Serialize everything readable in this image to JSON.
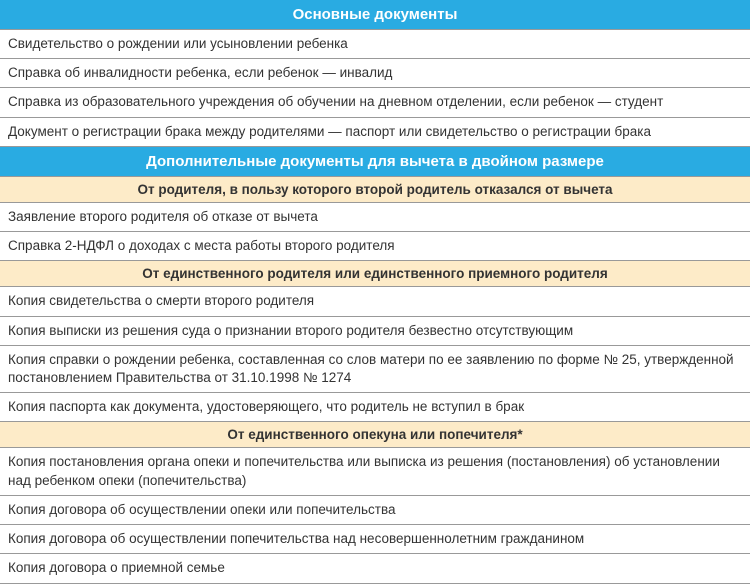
{
  "colors": {
    "header_primary_bg": "#29abe2",
    "header_primary_fg": "#ffffff",
    "header_secondary_bg": "#fdebc8",
    "header_secondary_fg": "#333333",
    "row_bg": "#ffffff",
    "row_fg": "#333333",
    "border": "#999999"
  },
  "typography": {
    "header_fontsize": 15,
    "subheader_fontsize": 13.5,
    "row_fontsize": 13.5,
    "font_family": "Arial"
  },
  "sections": [
    {
      "type": "header-primary",
      "text": "Основные документы"
    },
    {
      "type": "row",
      "text": "Свидетельство о рождении или усыновлении ребенка"
    },
    {
      "type": "row",
      "text": "Справка об инвалидности ребенка, если ребенок — инвалид"
    },
    {
      "type": "row",
      "text": "Справка из образовательного учреждения об обучении на дневном отделении, если ребенок — студент"
    },
    {
      "type": "row",
      "text": "Документ о регистрации брака между родителями — паспорт или свидетельство о регистрации брака"
    },
    {
      "type": "header-primary",
      "text": "Дополнительные документы для вычета в двойном размере"
    },
    {
      "type": "header-secondary",
      "text": "От родителя, в пользу которого второй родитель отказался от вычета"
    },
    {
      "type": "row",
      "text": "Заявление второго родителя об отказе от вычета"
    },
    {
      "type": "row",
      "text": "Справка 2-НДФЛ о доходах с места работы второго родителя"
    },
    {
      "type": "header-secondary",
      "text": "От единственного родителя или единственного приемного родителя"
    },
    {
      "type": "row",
      "text": "Копия свидетельства о смерти второго родителя"
    },
    {
      "type": "row",
      "text": "Копия выписки из решения суда о признании второго родителя безвестно отсутствующим"
    },
    {
      "type": "row",
      "text": "Копия справки о рождении ребенка, составленная со слов матери по ее заявлению по форме № 25, утвержденной постановлением Правительства от 31.10.1998 № 1274"
    },
    {
      "type": "row",
      "text": "Копия паспорта как документа, удостоверяющего, что родитель не вступил в брак"
    },
    {
      "type": "header-secondary",
      "text": "От единственного опекуна или попечителя*"
    },
    {
      "type": "row",
      "text": "Копия постановления органа опеки и попечительства или выписка из решения (постановления) об установлении над ребенком опеки (попечительства)"
    },
    {
      "type": "row",
      "text": "Копия договора об осуществлении опеки или попечительства"
    },
    {
      "type": "row",
      "text": "Копия договора об осуществлении попечительства над несовершеннолетним гражданином"
    },
    {
      "type": "row",
      "text": "Копия договора о приемной семье"
    }
  ]
}
